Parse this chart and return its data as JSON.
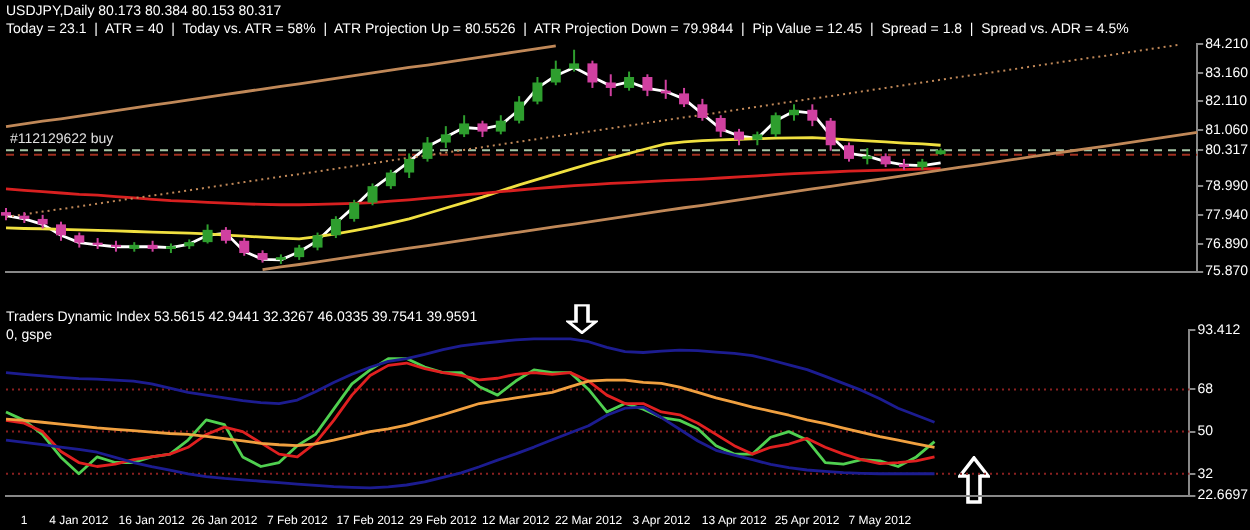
{
  "chart_data": [
    {
      "type": "candlestick",
      "annotations": [
        "USDJPY,Daily 80.173 80.384 80.153 80.317",
        "Today = 23.1  |  ATR = 40  |  Today vs. ATR = 58%  |  ATR Projection Up = 80.5526  |  ATR Projection Down = 79.9844  |  Pip Value = 12.45  |  Spread = 1.8  |  Spread vs. ADR = 4.5%"
      ],
      "categories": [
        null,
        null,
        null,
        null,
        null,
        null,
        null,
        null,
        null,
        null,
        null,
        null,
        null,
        null,
        null,
        null,
        null,
        null,
        null,
        null,
        null,
        null,
        null,
        null,
        null,
        null,
        null,
        null,
        null,
        null,
        null,
        null,
        null,
        null,
        null,
        null,
        null,
        null,
        null,
        null,
        null,
        null,
        null,
        null,
        null,
        null,
        null,
        null,
        null,
        null,
        null,
        null,
        null,
        null,
        null,
        null,
        null,
        null,
        null,
        null,
        null,
        null,
        null,
        null,
        null,
        null
      ],
      "ohlc": [
        [
          78.05,
          78.2,
          77.75,
          77.92
        ],
        [
          77.92,
          78.05,
          77.65,
          77.8
        ],
        [
          77.8,
          77.95,
          77.45,
          77.6
        ],
        [
          77.6,
          77.7,
          77.0,
          77.2
        ],
        [
          77.2,
          77.3,
          76.75,
          76.93
        ],
        [
          76.93,
          77.1,
          76.7,
          76.85
        ],
        [
          76.85,
          77.0,
          76.6,
          76.78
        ],
        [
          76.7,
          76.95,
          76.6,
          76.85
        ],
        [
          76.85,
          77.0,
          76.6,
          76.7
        ],
        [
          76.7,
          76.9,
          76.55,
          76.8
        ],
        [
          76.8,
          77.05,
          76.7,
          76.95
        ],
        [
          76.95,
          77.6,
          76.9,
          77.4
        ],
        [
          77.4,
          77.5,
          76.9,
          77.0
        ],
        [
          77.0,
          77.1,
          76.45,
          76.55
        ],
        [
          76.55,
          76.65,
          76.2,
          76.3
        ],
        [
          76.3,
          76.5,
          76.15,
          76.4
        ],
        [
          76.4,
          76.85,
          76.3,
          76.75
        ],
        [
          76.75,
          77.3,
          76.65,
          77.2
        ],
        [
          77.2,
          77.9,
          77.1,
          77.8
        ],
        [
          77.8,
          78.5,
          77.7,
          78.4
        ],
        [
          78.4,
          79.1,
          78.3,
          79.0
        ],
        [
          79.0,
          79.6,
          78.9,
          79.5
        ],
        [
          79.5,
          80.2,
          79.3,
          80.0
        ],
        [
          80.0,
          80.8,
          79.9,
          80.6
        ],
        [
          80.6,
          81.2,
          80.4,
          80.9
        ],
        [
          80.9,
          81.6,
          80.8,
          81.3
        ],
        [
          81.3,
          81.4,
          80.8,
          81.0
        ],
        [
          81.0,
          81.6,
          80.9,
          81.4
        ],
        [
          81.4,
          82.3,
          81.3,
          82.1
        ],
        [
          82.1,
          83.0,
          82.0,
          82.8
        ],
        [
          82.8,
          83.6,
          82.7,
          83.3
        ],
        [
          83.3,
          84.0,
          83.2,
          83.5
        ],
        [
          83.5,
          83.6,
          82.6,
          82.8
        ],
        [
          82.8,
          83.1,
          82.3,
          82.6
        ],
        [
          82.6,
          83.2,
          82.5,
          83.0
        ],
        [
          83.0,
          83.1,
          82.3,
          82.5
        ],
        [
          82.5,
          82.9,
          82.2,
          82.4
        ],
        [
          82.4,
          82.6,
          81.9,
          82.0
        ],
        [
          82.0,
          82.2,
          81.4,
          81.5
        ],
        [
          81.5,
          81.6,
          80.8,
          81.0
        ],
        [
          81.0,
          81.1,
          80.5,
          80.7
        ],
        [
          80.7,
          81.0,
          80.5,
          80.9
        ],
        [
          80.9,
          81.7,
          80.8,
          81.6
        ],
        [
          81.6,
          82.0,
          81.4,
          81.8
        ],
        [
          81.8,
          82.0,
          81.2,
          81.4
        ],
        [
          81.4,
          81.5,
          80.3,
          80.5
        ],
        [
          80.5,
          80.6,
          79.9,
          80.0
        ],
        [
          80.0,
          80.4,
          79.8,
          80.1
        ],
        [
          80.1,
          80.2,
          79.7,
          79.8
        ],
        [
          79.8,
          80.0,
          79.6,
          79.7
        ],
        [
          79.7,
          80.0,
          79.6,
          79.9
        ],
        [
          80.173,
          80.384,
          80.153,
          80.317
        ],
        null,
        null,
        null,
        null,
        null,
        null,
        null,
        null,
        null,
        null,
        null,
        null,
        null,
        null
      ],
      "colors": [
        "#d040a0",
        "#d040a0",
        "#d040a0",
        "#d040a0",
        "#d040a0",
        "#d040a0",
        "#d040a0",
        "#2e9e2e",
        "#d040a0",
        "#2e9e2e",
        "#2e9e2e",
        "#2e9e2e",
        "#d040a0",
        "#d040a0",
        "#d040a0",
        "#2e9e2e",
        "#2e9e2e",
        "#2e9e2e",
        "#2e9e2e",
        "#2e9e2e",
        "#2e9e2e",
        "#2e9e2e",
        "#2e9e2e",
        "#2e9e2e",
        "#2e9e2e",
        "#2e9e2e",
        "#d040a0",
        "#2e9e2e",
        "#2e9e2e",
        "#2e9e2e",
        "#2e9e2e",
        "#2e9e2e",
        "#d040a0",
        "#d040a0",
        "#2e9e2e",
        "#d040a0",
        "#d040a0",
        "#d040a0",
        "#d040a0",
        "#d040a0",
        "#d040a0",
        "#2e9e2e",
        "#2e9e2e",
        "#2e9e2e",
        "#d040a0",
        "#d040a0",
        "#d040a0",
        "#2e9e2e",
        "#d040a0",
        "#d040a0",
        "#2e9e2e",
        "#2e9e2e",
        null,
        null,
        null,
        null,
        null,
        null,
        null,
        null,
        null,
        null,
        null,
        null,
        null,
        null
      ],
      "series": [
        {
          "type": "line",
          "color": "#c08858",
          "values": [
            81.18,
            81.28,
            81.38,
            81.47,
            81.57,
            81.67,
            81.77,
            81.87,
            81.97,
            82.06,
            82.16,
            82.26,
            82.36,
            82.46,
            82.56,
            82.66,
            82.75,
            82.85,
            82.95,
            83.05,
            83.15,
            83.25,
            83.35,
            83.44,
            83.54,
            83.64,
            83.74,
            83.84,
            83.94,
            84.04,
            84.14,
            null,
            null,
            null,
            null,
            null,
            null,
            null,
            null,
            null,
            null,
            null,
            null,
            null,
            null,
            null,
            null,
            null,
            null,
            null,
            null,
            null,
            null,
            null,
            null,
            null,
            null,
            null,
            null,
            null,
            null,
            null,
            null,
            null,
            null,
            null
          ]
        },
        {
          "type": "line",
          "color": "#c08858",
          "line_style": "dotted",
          "values": [
            77.87,
            77.97,
            78.07,
            78.16,
            78.26,
            78.36,
            78.46,
            78.56,
            78.66,
            78.75,
            78.85,
            78.95,
            79.05,
            79.15,
            79.25,
            79.35,
            79.44,
            79.54,
            79.64,
            79.74,
            79.84,
            79.94,
            80.04,
            80.13,
            80.23,
            80.33,
            80.43,
            80.53,
            80.63,
            80.73,
            80.83,
            80.92,
            81.02,
            81.12,
            81.22,
            81.32,
            81.42,
            81.52,
            81.61,
            81.71,
            81.81,
            81.91,
            82.01,
            82.11,
            82.21,
            82.3,
            82.4,
            82.5,
            82.6,
            82.7,
            82.8,
            82.9,
            83.0,
            83.09,
            83.19,
            83.29,
            83.39,
            83.49,
            83.59,
            83.69,
            83.78,
            83.88,
            83.98,
            84.08,
            84.18,
            null
          ]
        },
        {
          "type": "line",
          "color": "#c08858",
          "values": [
            null,
            null,
            null,
            null,
            null,
            null,
            null,
            null,
            null,
            null,
            null,
            null,
            null,
            null,
            75.94,
            76.04,
            76.13,
            76.23,
            76.33,
            76.43,
            76.53,
            76.63,
            76.73,
            76.82,
            76.92,
            77.02,
            77.12,
            77.22,
            77.32,
            77.42,
            77.52,
            77.61,
            77.71,
            77.81,
            77.91,
            78.01,
            78.11,
            78.21,
            78.3,
            78.4,
            78.5,
            78.6,
            78.7,
            78.8,
            78.9,
            78.99,
            79.09,
            79.19,
            79.29,
            79.39,
            79.49,
            79.59,
            79.69,
            79.78,
            79.88,
            79.98,
            80.08,
            80.18,
            80.28,
            80.38,
            80.47,
            80.57,
            80.67,
            80.77,
            80.87,
            80.97
          ]
        },
        {
          "type": "line",
          "color": "#d82020",
          "values": [
            78.9,
            78.85,
            78.8,
            78.75,
            78.7,
            78.67,
            78.62,
            78.57,
            78.52,
            78.47,
            78.44,
            78.41,
            78.38,
            78.35,
            78.33,
            78.32,
            78.32,
            78.33,
            78.35,
            78.37,
            78.4,
            78.45,
            78.5,
            78.56,
            78.62,
            78.68,
            78.74,
            78.8,
            78.86,
            78.92,
            78.97,
            79.02,
            79.06,
            79.1,
            79.13,
            79.17,
            79.2,
            79.23,
            79.26,
            79.3,
            79.34,
            79.38,
            79.42,
            79.46,
            79.49,
            79.52,
            79.55,
            79.57,
            79.59,
            79.61,
            79.63,
            79.64,
            null,
            null,
            null,
            null,
            null,
            null,
            null,
            null,
            null,
            null,
            null,
            null,
            null,
            null
          ]
        },
        {
          "type": "line",
          "color": "#f0e040",
          "values": [
            77.47,
            77.45,
            77.44,
            77.42,
            77.4,
            77.38,
            77.36,
            77.34,
            77.32,
            77.3,
            77.28,
            77.25,
            77.21,
            77.17,
            77.13,
            77.1,
            77.07,
            77.15,
            77.25,
            77.37,
            77.5,
            77.65,
            77.8,
            78.0,
            78.2,
            78.4,
            78.6,
            78.83,
            79.05,
            79.25,
            79.45,
            79.65,
            79.85,
            80.03,
            80.2,
            80.38,
            80.55,
            80.62,
            80.67,
            80.7,
            80.72,
            80.74,
            80.76,
            80.77,
            80.78,
            80.74,
            80.7,
            80.66,
            80.62,
            80.58,
            80.55,
            80.5,
            null,
            null,
            null,
            null,
            null,
            null,
            null,
            null,
            null,
            null,
            null,
            null,
            null,
            null
          ]
        },
        {
          "type": "line",
          "color": "#ffffff",
          "values": [
            77.92,
            77.8,
            77.6,
            77.2,
            76.93,
            76.85,
            76.78,
            76.78,
            76.78,
            76.75,
            76.88,
            77.2,
            77.28,
            76.61,
            76.32,
            76.3,
            76.6,
            77.0,
            77.65,
            78.25,
            78.9,
            79.4,
            79.9,
            80.45,
            80.8,
            81.15,
            81.1,
            81.24,
            81.8,
            82.6,
            83.05,
            83.35,
            83.0,
            82.67,
            82.82,
            82.58,
            82.47,
            82.2,
            81.65,
            81.1,
            80.84,
            80.75,
            81.4,
            81.75,
            81.68,
            80.85,
            80.2,
            80.1,
            79.9,
            79.78,
            79.75,
            79.85,
            null,
            null,
            null,
            null,
            null,
            null,
            null,
            null,
            null,
            null,
            null,
            null,
            null,
            null
          ]
        }
      ],
      "ylim": [
        75.87,
        84.21
      ],
      "yticks": [
        {
          "value": 84.21,
          "label": "84.210"
        },
        {
          "value": 83.16,
          "label": "83.160"
        },
        {
          "value": 82.11,
          "label": "82.110"
        },
        {
          "value": 81.06,
          "label": "81.060"
        },
        {
          "value": 80.317,
          "label": "80.317"
        },
        {
          "value": 78.99,
          "label": "78.990"
        },
        {
          "value": 77.94,
          "label": "77.940"
        },
        {
          "value": 76.89,
          "label": "76.890"
        },
        {
          "value": 75.87,
          "label": "75.870"
        }
      ],
      "ref_lines": [
        {
          "axis": "y",
          "value": 80.32,
          "label": "#112129622 buy",
          "color": "#a8c8a8",
          "line_style": "dashed"
        },
        {
          "axis": "y",
          "value": 80.15,
          "color": "#a03020",
          "line_style": "dashed"
        }
      ]
    },
    {
      "type": "line",
      "annotations": [
        "Traders Dynamic Index 53.5615 42.9441 32.3267 46.0335 39.7541 39.9591",
        "0, gspe"
      ],
      "categories": [
        null,
        "1",
        null,
        null,
        "4 Jan 2012",
        null,
        null,
        null,
        "16 Jan 2012",
        null,
        null,
        null,
        "26 Jan 2012",
        null,
        null,
        null,
        "7 Feb 2012",
        null,
        null,
        null,
        "17 Feb 2012",
        null,
        null,
        null,
        "29 Feb 2012",
        null,
        null,
        null,
        "12 Mar 2012",
        null,
        null,
        null,
        "22 Mar 2012",
        null,
        null,
        null,
        "3 Apr 2012",
        null,
        null,
        null,
        "13 Apr 2012",
        null,
        null,
        null,
        "25 Apr 2012",
        null,
        null,
        null,
        "7 May 2012",
        null,
        null,
        null,
        null,
        null,
        null,
        null,
        null,
        null,
        null,
        null,
        null,
        null,
        null,
        null,
        null,
        null
      ],
      "series": [
        {
          "color": "#1c1c90",
          "values": [
            75.2,
            74.5,
            73.8,
            73.2,
            72.6,
            72.4,
            72,
            71.6,
            70.4,
            68.6,
            66.8,
            65.6,
            64.4,
            63.2,
            62.4,
            62,
            63.5,
            67,
            71,
            74.5,
            77.5,
            80,
            81.2,
            83,
            85,
            86.6,
            87.6,
            88.4,
            89.2,
            89.6,
            89.6,
            89.6,
            88.4,
            86,
            84.2,
            83.8,
            84.4,
            84.8,
            84.6,
            84,
            83.4,
            82.5,
            80.6,
            78.5,
            76.5,
            73.6,
            70.6,
            67.6,
            64,
            60,
            57,
            54,
            null,
            null,
            null,
            null,
            null,
            null,
            null,
            null,
            null,
            null,
            null,
            null,
            null,
            null
          ]
        },
        {
          "color": "#1c1c90",
          "values": [
            46.4,
            45.4,
            44.4,
            43.4,
            42.4,
            41.2,
            39,
            36.8,
            35,
            33.5,
            32,
            30.8,
            30,
            29.4,
            28.8,
            28.2,
            27.6,
            27,
            26.5,
            26.2,
            26,
            26.4,
            27.2,
            28.5,
            30.5,
            32.4,
            35,
            37.8,
            40.5,
            43.4,
            46.5,
            49.5,
            52.5,
            57,
            60,
            60.5,
            56,
            51,
            46,
            42,
            40,
            38,
            36,
            34.6,
            33.6,
            33,
            32.5,
            32.2,
            32,
            32,
            32,
            32,
            null,
            null,
            null,
            null,
            null,
            null,
            null,
            null,
            null,
            null,
            null,
            null,
            null,
            null
          ]
        },
        {
          "color": "#f0a040",
          "values": [
            55.3,
            54.8,
            54,
            53.2,
            52.4,
            51.6,
            51,
            50.4,
            49.8,
            49.2,
            48.8,
            48,
            47,
            46,
            45,
            44.4,
            44,
            44.8,
            46.4,
            48.2,
            50,
            51.2,
            52.8,
            55,
            57.2,
            59.6,
            62,
            63.2,
            64.4,
            65.6,
            66.8,
            69.2,
            71.6,
            72,
            72,
            71,
            70.6,
            69,
            66.8,
            64.4,
            62.5,
            60.5,
            58.8,
            57,
            55,
            53.4,
            51.5,
            49.7,
            47.9,
            46.4,
            44.8,
            43.3,
            null,
            null,
            null,
            null,
            null,
            null,
            null,
            null,
            null,
            null,
            null,
            null,
            null,
            null
          ]
        },
        {
          "color": "#e02020",
          "values": [
            54.8,
            53.6,
            50,
            41.6,
            36.8,
            35.1,
            36.1,
            38,
            39.2,
            40.4,
            43.3,
            48.8,
            51.9,
            50,
            45.2,
            40.4,
            39.2,
            45.2,
            54.8,
            65.6,
            74,
            78.3,
            79.3,
            76.9,
            75.2,
            74,
            72.1,
            72.8,
            74.5,
            75.2,
            74.5,
            75.2,
            71.6,
            65.6,
            62,
            62,
            58.4,
            57.2,
            53.6,
            48.8,
            44,
            40.4,
            43.3,
            44.7,
            47.1,
            43.3,
            40.4,
            38,
            36.3,
            36.8,
            37.5,
            39.2,
            null,
            null,
            null,
            null,
            null,
            null,
            null,
            null,
            null,
            null,
            null,
            null,
            null,
            null
          ]
        },
        {
          "color": "#50d050",
          "values": [
            58.4,
            54.8,
            48.8,
            39.2,
            32,
            39.2,
            36.8,
            36.8,
            39.2,
            40.4,
            46.4,
            55,
            53,
            39.2,
            35.1,
            36.8,
            44,
            48.8,
            59.6,
            70.4,
            76.4,
            81.2,
            81.2,
            77.6,
            75.2,
            75.2,
            69.2,
            65.6,
            71.6,
            76.4,
            75.2,
            75.2,
            68,
            58.4,
            62,
            59.6,
            56,
            54.8,
            51.2,
            44,
            40.4,
            40.4,
            47.6,
            50,
            46.4,
            36.8,
            36.1,
            38,
            37.5,
            35.1,
            39.2,
            45.7,
            null,
            null,
            null,
            null,
            null,
            null,
            null,
            null,
            null,
            null,
            null,
            null,
            null,
            null
          ]
        }
      ],
      "ylim": [
        22.6697,
        93.412
      ],
      "yticks": [
        93.412,
        68,
        50,
        32,
        22.6697
      ],
      "ref_lines": [
        {
          "axis": "y",
          "value": 68,
          "color": "#8b2020",
          "line_style": "dotted"
        },
        {
          "axis": "y",
          "value": 50,
          "color": "#8b2020",
          "line_style": "dotted"
        },
        {
          "axis": "y",
          "value": 32,
          "color": "#8b2020",
          "line_style": "dotted"
        }
      ]
    }
  ]
}
